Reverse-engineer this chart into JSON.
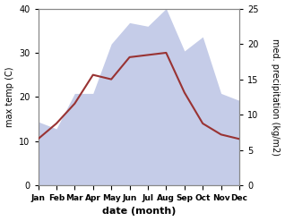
{
  "months": [
    "Jan",
    "Feb",
    "Mar",
    "Apr",
    "May",
    "Jun",
    "Jul",
    "Aug",
    "Sep",
    "Oct",
    "Nov",
    "Dec"
  ],
  "max_temp": [
    10.5,
    14.0,
    18.5,
    25.0,
    24.0,
    29.0,
    29.5,
    30.0,
    21.0,
    14.0,
    11.5,
    10.5
  ],
  "precipitation": [
    9.0,
    8.0,
    13.0,
    13.0,
    20.0,
    23.0,
    22.5,
    25.0,
    19.0,
    21.0,
    13.0,
    12.0
  ],
  "temp_color": "#993333",
  "precip_fill_color": "#c5cce8",
  "precip_edge_color": "#c5cce8",
  "xlabel": "date (month)",
  "ylabel_left": "max temp (C)",
  "ylabel_right": "med. precipitation (kg/m2)",
  "ylim_left": [
    0,
    40
  ],
  "ylim_right": [
    0,
    25
  ],
  "yticks_left": [
    0,
    10,
    20,
    30,
    40
  ],
  "yticks_right": [
    0,
    5,
    10,
    15,
    20,
    25
  ],
  "background_color": "#ffffff"
}
